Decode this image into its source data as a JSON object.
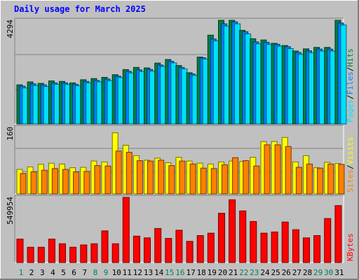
{
  "title": "Daily usage for March 2025",
  "colors": {
    "background": "#c0c0c0",
    "plot_bg": "#c0c0c0",
    "hits": "#008040",
    "files": "#0080ff",
    "pages": "#00e0ff",
    "visits": "#ffff00",
    "sites": "#ff8000",
    "kbytes": "#ff0000",
    "title": "#0000ff",
    "day_weekend": "#00805c",
    "day_weekday": "#000000"
  },
  "chart_data": [
    {
      "type": "bar",
      "panel": "hits-files-pages",
      "max_label": "4294",
      "categories": [
        "1",
        "2",
        "3",
        "4",
        "5",
        "6",
        "7",
        "8",
        "9",
        "10",
        "11",
        "12",
        "13",
        "14",
        "15",
        "16",
        "17",
        "18",
        "19",
        "20",
        "21",
        "22",
        "23",
        "24",
        "25",
        "26",
        "27",
        "28",
        "29",
        "30",
        "31"
      ],
      "legend": [
        {
          "text": "Hits",
          "color_key": "hits"
        },
        {
          "text": "/",
          "color_key": "separator"
        },
        {
          "text": "Files",
          "color_key": "files"
        },
        {
          "text": "/",
          "color_key": "separator"
        },
        {
          "text": "Pages",
          "color_key": "pages"
        }
      ],
      "series": [
        {
          "name": "Hits",
          "values": [
            1620,
            1740,
            1680,
            1780,
            1760,
            1700,
            1830,
            1880,
            1930,
            2040,
            2250,
            2340,
            2320,
            2520,
            2670,
            2420,
            2120,
            2770,
            3680,
            4294,
            4294,
            3880,
            3530,
            3480,
            3340,
            3250,
            3020,
            3110,
            3170,
            3170,
            4294
          ]
        },
        {
          "name": "Files",
          "values": [
            1560,
            1660,
            1620,
            1700,
            1700,
            1640,
            1760,
            1800,
            1860,
            1980,
            2180,
            2240,
            2260,
            2440,
            2590,
            2340,
            2070,
            2740,
            3520,
            4150,
            4230,
            3820,
            3400,
            3380,
            3300,
            3200,
            2960,
            3030,
            3100,
            3100,
            4180
          ]
        },
        {
          "name": "Pages",
          "values": [
            1490,
            1590,
            1550,
            1640,
            1640,
            1580,
            1700,
            1740,
            1790,
            1920,
            2110,
            2170,
            2190,
            2380,
            2530,
            2280,
            2010,
            2690,
            3440,
            4060,
            4150,
            3730,
            3320,
            3300,
            3220,
            3120,
            2880,
            2950,
            3020,
            3020,
            4100
          ]
        }
      ]
    },
    {
      "type": "bar",
      "panel": "visits-sites",
      "max_label": "160",
      "categories": [
        "1",
        "2",
        "3",
        "4",
        "5",
        "6",
        "7",
        "8",
        "9",
        "10",
        "11",
        "12",
        "13",
        "14",
        "15",
        "16",
        "17",
        "18",
        "19",
        "20",
        "21",
        "22",
        "23",
        "24",
        "25",
        "26",
        "27",
        "28",
        "29",
        "30",
        "31"
      ],
      "legend": [
        {
          "text": "Visits",
          "color_key": "visits"
        },
        {
          "text": "/",
          "color_key": "separator"
        },
        {
          "text": "Sites",
          "color_key": "sites"
        }
      ],
      "series": [
        {
          "name": "Visits",
          "values": [
            59,
            65,
            71,
            74,
            72,
            63,
            64,
            79,
            77,
            147,
            117,
            92,
            81,
            86,
            75,
            88,
            79,
            74,
            72,
            77,
            79,
            78,
            88,
            126,
            126,
            136,
            77,
            92,
            63,
            76,
            73
          ]
        },
        {
          "name": "Sites",
          "values": [
            49,
            53,
            57,
            61,
            59,
            53,
            54,
            68,
            67,
            103,
            100,
            80,
            79,
            81,
            68,
            79,
            72,
            62,
            61,
            70,
            87,
            80,
            67,
            118,
            118,
            114,
            64,
            72,
            62,
            72,
            71
          ]
        }
      ]
    },
    {
      "type": "bar",
      "panel": "kbytes",
      "max_label": "549954",
      "categories": [
        "1",
        "2",
        "3",
        "4",
        "5",
        "6",
        "7",
        "8",
        "9",
        "10",
        "11",
        "12",
        "13",
        "14",
        "15",
        "16",
        "17",
        "18",
        "19",
        "20",
        "21",
        "22",
        "23",
        "24",
        "25",
        "26",
        "27",
        "28",
        "29",
        "30",
        "31"
      ],
      "legend": [
        {
          "text": "KBytes",
          "color_key": "kbytes"
        }
      ],
      "series": [
        {
          "name": "KBytes",
          "values": [
            200000,
            130000,
            130000,
            200000,
            160000,
            130000,
            150000,
            160000,
            270000,
            160000,
            555000,
            225000,
            210000,
            290000,
            205000,
            275000,
            180000,
            230000,
            250000,
            420000,
            535000,
            440000,
            350000,
            250000,
            260000,
            345000,
            280000,
            210000,
            230000,
            375000,
            485000
          ]
        }
      ]
    }
  ],
  "x_axis": {
    "days": [
      "1",
      "2",
      "3",
      "4",
      "5",
      "6",
      "7",
      "8",
      "9",
      "10",
      "11",
      "12",
      "13",
      "14",
      "15",
      "16",
      "17",
      "18",
      "19",
      "20",
      "21",
      "22",
      "23",
      "24",
      "25",
      "26",
      "27",
      "28",
      "29",
      "30",
      "31"
    ],
    "weekend_days": [
      "1",
      "8",
      "9",
      "15",
      "16",
      "22",
      "23",
      "29",
      "30"
    ]
  }
}
